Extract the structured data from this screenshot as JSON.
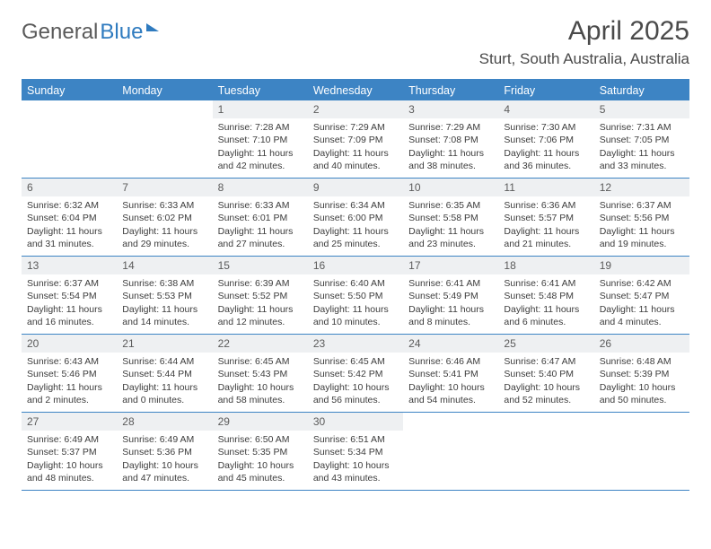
{
  "logo": {
    "part1": "General",
    "part2": "Blue"
  },
  "title": "April 2025",
  "location": "Sturt, South Australia, Australia",
  "colors": {
    "header_bg": "#3d84c4",
    "header_text": "#ffffff",
    "daynum_bg": "#eef0f2",
    "border": "#3d84c4",
    "logo_gray": "#5a5a5a",
    "logo_blue": "#2f7bbf",
    "text": "#3c3c3c",
    "background": "#ffffff"
  },
  "fonts": {
    "title_size": 30,
    "location_size": 17,
    "header_size": 12.5,
    "cell_size": 10.5
  },
  "day_names": [
    "Sunday",
    "Monday",
    "Tuesday",
    "Wednesday",
    "Thursday",
    "Friday",
    "Saturday"
  ],
  "weeks": [
    [
      {
        "empty": true
      },
      {
        "empty": true
      },
      {
        "day": "1",
        "sunrise": "Sunrise: 7:28 AM",
        "sunset": "Sunset: 7:10 PM",
        "daylight": "Daylight: 11 hours and 42 minutes."
      },
      {
        "day": "2",
        "sunrise": "Sunrise: 7:29 AM",
        "sunset": "Sunset: 7:09 PM",
        "daylight": "Daylight: 11 hours and 40 minutes."
      },
      {
        "day": "3",
        "sunrise": "Sunrise: 7:29 AM",
        "sunset": "Sunset: 7:08 PM",
        "daylight": "Daylight: 11 hours and 38 minutes."
      },
      {
        "day": "4",
        "sunrise": "Sunrise: 7:30 AM",
        "sunset": "Sunset: 7:06 PM",
        "daylight": "Daylight: 11 hours and 36 minutes."
      },
      {
        "day": "5",
        "sunrise": "Sunrise: 7:31 AM",
        "sunset": "Sunset: 7:05 PM",
        "daylight": "Daylight: 11 hours and 33 minutes."
      }
    ],
    [
      {
        "day": "6",
        "sunrise": "Sunrise: 6:32 AM",
        "sunset": "Sunset: 6:04 PM",
        "daylight": "Daylight: 11 hours and 31 minutes."
      },
      {
        "day": "7",
        "sunrise": "Sunrise: 6:33 AM",
        "sunset": "Sunset: 6:02 PM",
        "daylight": "Daylight: 11 hours and 29 minutes."
      },
      {
        "day": "8",
        "sunrise": "Sunrise: 6:33 AM",
        "sunset": "Sunset: 6:01 PM",
        "daylight": "Daylight: 11 hours and 27 minutes."
      },
      {
        "day": "9",
        "sunrise": "Sunrise: 6:34 AM",
        "sunset": "Sunset: 6:00 PM",
        "daylight": "Daylight: 11 hours and 25 minutes."
      },
      {
        "day": "10",
        "sunrise": "Sunrise: 6:35 AM",
        "sunset": "Sunset: 5:58 PM",
        "daylight": "Daylight: 11 hours and 23 minutes."
      },
      {
        "day": "11",
        "sunrise": "Sunrise: 6:36 AM",
        "sunset": "Sunset: 5:57 PM",
        "daylight": "Daylight: 11 hours and 21 minutes."
      },
      {
        "day": "12",
        "sunrise": "Sunrise: 6:37 AM",
        "sunset": "Sunset: 5:56 PM",
        "daylight": "Daylight: 11 hours and 19 minutes."
      }
    ],
    [
      {
        "day": "13",
        "sunrise": "Sunrise: 6:37 AM",
        "sunset": "Sunset: 5:54 PM",
        "daylight": "Daylight: 11 hours and 16 minutes."
      },
      {
        "day": "14",
        "sunrise": "Sunrise: 6:38 AM",
        "sunset": "Sunset: 5:53 PM",
        "daylight": "Daylight: 11 hours and 14 minutes."
      },
      {
        "day": "15",
        "sunrise": "Sunrise: 6:39 AM",
        "sunset": "Sunset: 5:52 PM",
        "daylight": "Daylight: 11 hours and 12 minutes."
      },
      {
        "day": "16",
        "sunrise": "Sunrise: 6:40 AM",
        "sunset": "Sunset: 5:50 PM",
        "daylight": "Daylight: 11 hours and 10 minutes."
      },
      {
        "day": "17",
        "sunrise": "Sunrise: 6:41 AM",
        "sunset": "Sunset: 5:49 PM",
        "daylight": "Daylight: 11 hours and 8 minutes."
      },
      {
        "day": "18",
        "sunrise": "Sunrise: 6:41 AM",
        "sunset": "Sunset: 5:48 PM",
        "daylight": "Daylight: 11 hours and 6 minutes."
      },
      {
        "day": "19",
        "sunrise": "Sunrise: 6:42 AM",
        "sunset": "Sunset: 5:47 PM",
        "daylight": "Daylight: 11 hours and 4 minutes."
      }
    ],
    [
      {
        "day": "20",
        "sunrise": "Sunrise: 6:43 AM",
        "sunset": "Sunset: 5:46 PM",
        "daylight": "Daylight: 11 hours and 2 minutes."
      },
      {
        "day": "21",
        "sunrise": "Sunrise: 6:44 AM",
        "sunset": "Sunset: 5:44 PM",
        "daylight": "Daylight: 11 hours and 0 minutes."
      },
      {
        "day": "22",
        "sunrise": "Sunrise: 6:45 AM",
        "sunset": "Sunset: 5:43 PM",
        "daylight": "Daylight: 10 hours and 58 minutes."
      },
      {
        "day": "23",
        "sunrise": "Sunrise: 6:45 AM",
        "sunset": "Sunset: 5:42 PM",
        "daylight": "Daylight: 10 hours and 56 minutes."
      },
      {
        "day": "24",
        "sunrise": "Sunrise: 6:46 AM",
        "sunset": "Sunset: 5:41 PM",
        "daylight": "Daylight: 10 hours and 54 minutes."
      },
      {
        "day": "25",
        "sunrise": "Sunrise: 6:47 AM",
        "sunset": "Sunset: 5:40 PM",
        "daylight": "Daylight: 10 hours and 52 minutes."
      },
      {
        "day": "26",
        "sunrise": "Sunrise: 6:48 AM",
        "sunset": "Sunset: 5:39 PM",
        "daylight": "Daylight: 10 hours and 50 minutes."
      }
    ],
    [
      {
        "day": "27",
        "sunrise": "Sunrise: 6:49 AM",
        "sunset": "Sunset: 5:37 PM",
        "daylight": "Daylight: 10 hours and 48 minutes."
      },
      {
        "day": "28",
        "sunrise": "Sunrise: 6:49 AM",
        "sunset": "Sunset: 5:36 PM",
        "daylight": "Daylight: 10 hours and 47 minutes."
      },
      {
        "day": "29",
        "sunrise": "Sunrise: 6:50 AM",
        "sunset": "Sunset: 5:35 PM",
        "daylight": "Daylight: 10 hours and 45 minutes."
      },
      {
        "day": "30",
        "sunrise": "Sunrise: 6:51 AM",
        "sunset": "Sunset: 5:34 PM",
        "daylight": "Daylight: 10 hours and 43 minutes."
      },
      {
        "empty": true
      },
      {
        "empty": true
      },
      {
        "empty": true
      }
    ]
  ]
}
